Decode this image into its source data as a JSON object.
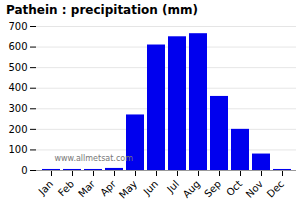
{
  "chart_data": {
    "type": "bar",
    "title": "Pathein : precipitation (mm)",
    "categories": [
      "Jan",
      "Feb",
      "Mar",
      "Apr",
      "May",
      "Jun",
      "Jul",
      "Aug",
      "Sep",
      "Oct",
      "Nov",
      "Dec"
    ],
    "values": [
      5,
      5,
      5,
      10,
      270,
      610,
      650,
      665,
      360,
      200,
      80,
      5
    ],
    "color": "#0000ee",
    "ylim": [
      0,
      700
    ],
    "yticks": [
      0,
      100,
      200,
      300,
      400,
      500,
      600,
      700
    ],
    "grid": true,
    "annotations": [
      "www.allmetsat.com"
    ]
  }
}
